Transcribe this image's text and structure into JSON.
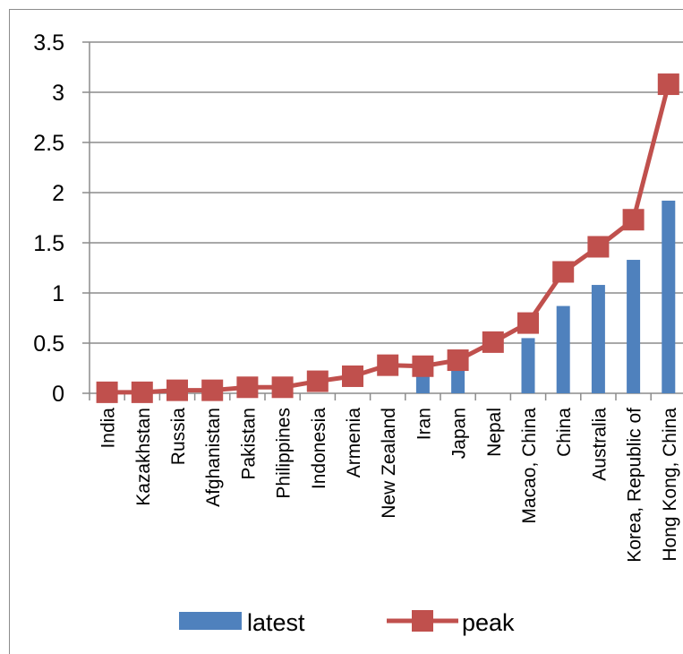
{
  "chart_data": {
    "type": "bar",
    "categories": [
      "India",
      "Kazakhstan",
      "Russia",
      "Afghanistan",
      "Pakistan",
      "Philippines",
      "Indonesia",
      "Armenia",
      "New Zealand",
      "Iran",
      "Japan",
      "Nepal",
      "Macao, China",
      "China",
      "Australia",
      "Korea, Republic of",
      "Hong Kong, China"
    ],
    "series": [
      {
        "name": "latest",
        "kind": "bar",
        "color": "#4f81bd",
        "values": [
          0,
          0,
          0,
          0,
          0,
          0,
          0,
          0,
          0,
          0.2,
          0.3,
          0,
          0.55,
          0.87,
          1.08,
          1.33,
          1.92
        ]
      },
      {
        "name": "peak",
        "kind": "line",
        "marker": "square",
        "color": "#c0504d",
        "values": [
          0.01,
          0.01,
          0.03,
          0.03,
          0.06,
          0.06,
          0.12,
          0.17,
          0.28,
          0.27,
          0.33,
          0.51,
          0.7,
          1.21,
          1.46,
          1.73,
          3.08
        ]
      }
    ],
    "ylim": [
      0,
      3.5
    ],
    "yticks": [
      "0",
      "0.5",
      "1",
      "1.5",
      "2",
      "2.5",
      "3",
      "3.5"
    ],
    "grid": true,
    "legend": "bottom"
  }
}
